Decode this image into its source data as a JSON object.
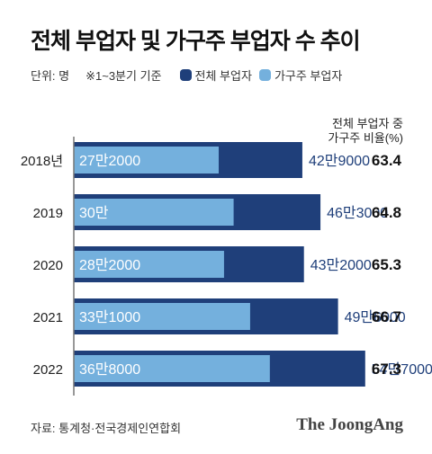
{
  "title": "전체 부업자 및 가구주 부업자 수 추이",
  "legend": {
    "unit": "단위: 명",
    "period": "※1~3분기 기준",
    "total_label": "전체 부업자",
    "head_label": "가구주 부업자"
  },
  "ratio_header": [
    "전체 부업자 중",
    "가구주 비율(%)"
  ],
  "source": "자료: 통계청·전국경제인연합회",
  "logo": "The JoongAng",
  "colors": {
    "total": "#1f3f7a",
    "head": "#74b0dd",
    "axis": "#777777"
  },
  "chart_data": {
    "type": "bar",
    "orientation": "horizontal",
    "stacked": false,
    "categories": [
      "2018년",
      "2019",
      "2020",
      "2021",
      "2022"
    ],
    "series": [
      {
        "name": "전체 부업자",
        "values": [
          429000,
          463000,
          432000,
          496000,
          547000
        ],
        "labels": [
          "42만9000",
          "46만3000",
          "43만2000",
          "49만6000",
          "54만7000"
        ]
      },
      {
        "name": "가구주 부업자",
        "values": [
          272000,
          300000,
          282000,
          331000,
          368000
        ],
        "labels": [
          "27만2000",
          "30만",
          "28만2000",
          "33만1000",
          "36만8000"
        ]
      }
    ],
    "ratio": [
      "63.4",
      "64.8",
      "65.3",
      "66.7",
      "67.3"
    ],
    "xlim": [
      0,
      620000
    ]
  }
}
